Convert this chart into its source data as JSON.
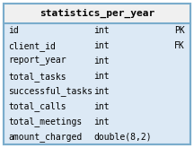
{
  "title": "statistics_per_year",
  "header_bg": "#f0f0f0",
  "body_bg": "#dce9f5",
  "border_color": "#7aaccc",
  "title_color": "#000000",
  "text_color": "#000000",
  "rows": [
    {
      "field": "id",
      "type": "int",
      "key": "PK"
    },
    {
      "field": "client_id",
      "type": "int",
      "key": "FK"
    },
    {
      "field": "report_year",
      "type": "int",
      "key": ""
    },
    {
      "field": "total_tasks",
      "type": "int",
      "key": ""
    },
    {
      "field": "successful_tasks",
      "type": "int",
      "key": ""
    },
    {
      "field": "total_calls",
      "type": "int",
      "key": ""
    },
    {
      "field": "total_meetings",
      "type": "int",
      "key": ""
    },
    {
      "field": "amount_charged",
      "type": "double(8,2)",
      "key": ""
    }
  ],
  "font_size": 7.0,
  "title_font_size": 8.0,
  "fig_width": 2.16,
  "fig_height": 1.65,
  "dpi": 100
}
